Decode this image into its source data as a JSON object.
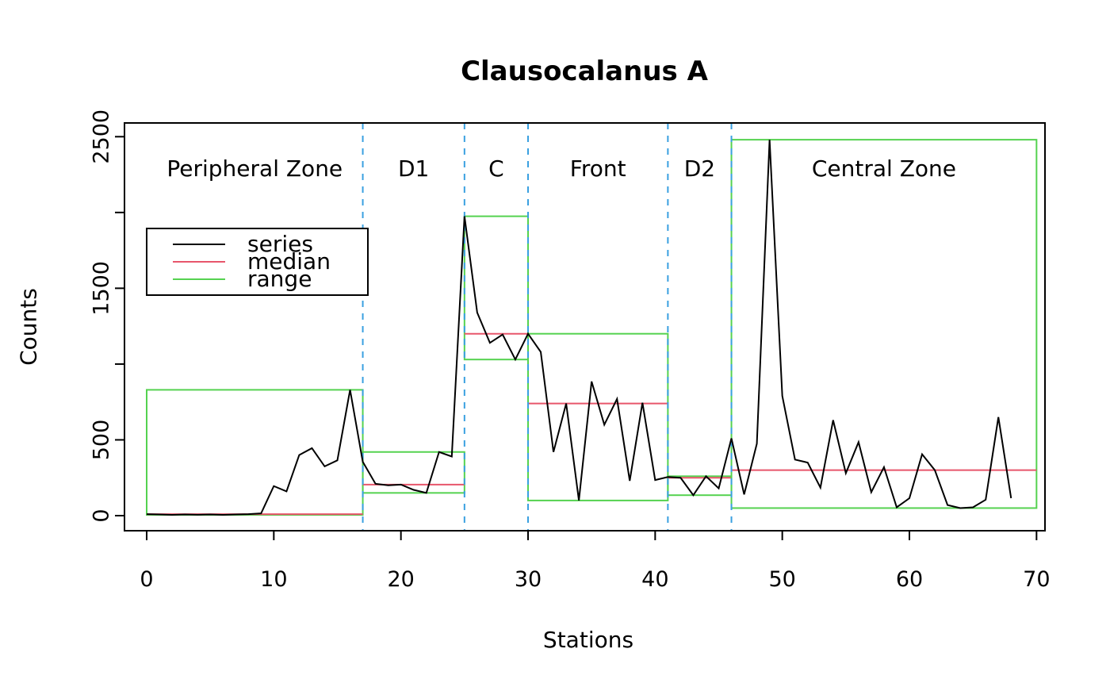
{
  "title": "Clausocalanus A",
  "chart_data": {
    "type": "line",
    "title": "Clausocalanus A",
    "xlabel": "Stations",
    "ylabel": "Counts",
    "xlim": [
      0,
      70
    ],
    "ylim": [
      0,
      2500
    ],
    "grid": false,
    "x_ticks": [
      0,
      10,
      20,
      30,
      40,
      50,
      60,
      70
    ],
    "y_ticks": [
      {
        "value": 0,
        "label": "0"
      },
      {
        "value": 500,
        "label": "500"
      },
      {
        "value": 1000,
        "label": ""
      },
      {
        "value": 1500,
        "label": "1500"
      },
      {
        "value": 2000,
        "label": ""
      },
      {
        "value": 2500,
        "label": "2500"
      }
    ],
    "series": {
      "name": "series",
      "x": [
        0,
        1,
        2,
        3,
        4,
        5,
        6,
        7,
        8,
        9,
        10,
        11,
        12,
        13,
        14,
        15,
        16,
        17,
        18,
        19,
        20,
        21,
        22,
        23,
        24,
        25,
        26,
        27,
        28,
        29,
        30,
        31,
        32,
        33,
        34,
        35,
        36,
        37,
        38,
        39,
        40,
        41,
        42,
        43,
        44,
        45,
        46,
        47,
        48,
        49,
        50,
        51,
        52,
        53,
        54,
        55,
        56,
        57,
        58,
        59,
        60,
        61,
        62,
        63,
        64,
        65,
        66,
        67,
        68
      ],
      "values": [
        10,
        8,
        5,
        8,
        6,
        8,
        5,
        8,
        10,
        15,
        195,
        160,
        400,
        445,
        325,
        365,
        830,
        355,
        210,
        200,
        205,
        170,
        150,
        420,
        390,
        1975,
        1340,
        1140,
        1195,
        1030,
        1200,
        1080,
        420,
        740,
        100,
        885,
        600,
        770,
        230,
        745,
        235,
        255,
        250,
        135,
        260,
        180,
        510,
        140,
        475,
        2480,
        790,
        370,
        350,
        185,
        630,
        280,
        485,
        155,
        320,
        55,
        115,
        405,
        300,
        70,
        50,
        55,
        105,
        650,
        115
      ]
    },
    "zones": [
      {
        "label": "Peripheral Zone",
        "start": 0,
        "end": 17,
        "range_min": 5,
        "range_max": 830,
        "median": 10
      },
      {
        "label": "D1",
        "start": 17,
        "end": 25,
        "range_min": 150,
        "range_max": 420,
        "median": 205
      },
      {
        "label": "C",
        "start": 25,
        "end": 30,
        "range_min": 1030,
        "range_max": 1975,
        "median": 1200
      },
      {
        "label": "Front",
        "start": 30,
        "end": 41,
        "range_min": 100,
        "range_max": 1200,
        "median": 740
      },
      {
        "label": "D2",
        "start": 41,
        "end": 46,
        "range_min": 135,
        "range_max": 260,
        "median": 250
      },
      {
        "label": "Central Zone",
        "start": 46,
        "end": 70,
        "range_min": 50,
        "range_max": 2480,
        "median": 300
      }
    ],
    "dividers": [
      17,
      25,
      30,
      41,
      46
    ],
    "legend": {
      "position": "upper-left",
      "entries": [
        {
          "label": "series",
          "color": "#000000"
        },
        {
          "label": "median",
          "color": "#e8566b"
        },
        {
          "label": "range",
          "color": "#55d250"
        }
      ]
    },
    "colors": {
      "series": "#000000",
      "median": "#e8566b",
      "range": "#55d250",
      "divider": "#3aa0e0",
      "axis": "#000000"
    }
  }
}
